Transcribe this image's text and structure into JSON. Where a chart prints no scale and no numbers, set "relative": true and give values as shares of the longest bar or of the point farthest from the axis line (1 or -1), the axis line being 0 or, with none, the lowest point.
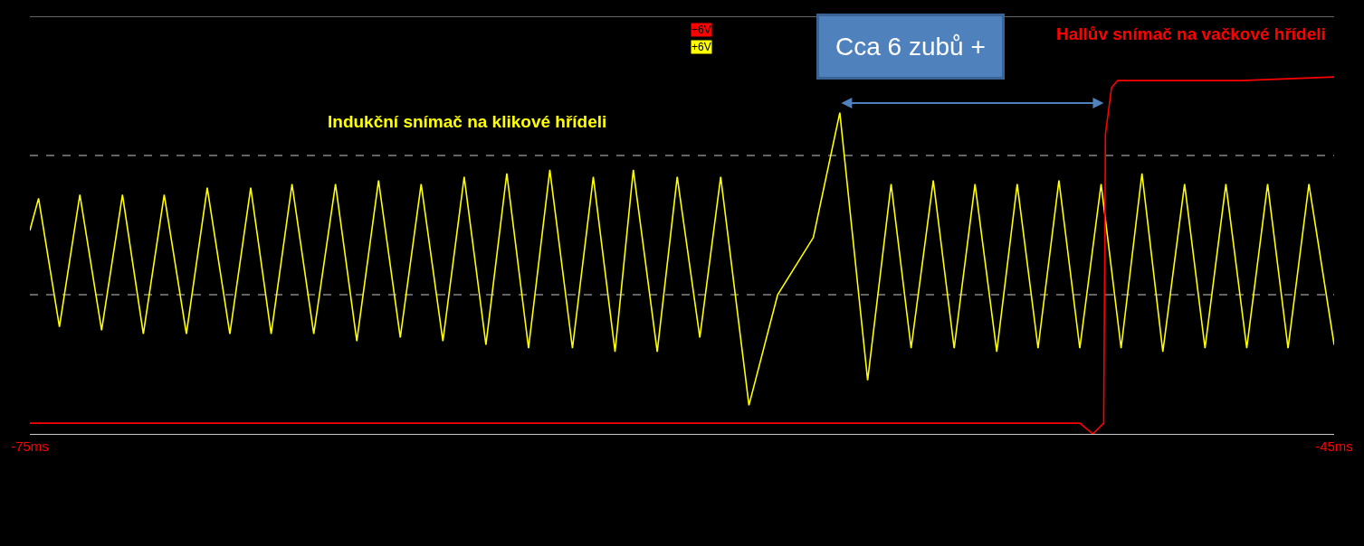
{
  "chart_data": {
    "type": "line",
    "relative": true,
    "legend": false,
    "ref_lines": [
      {
        "axis": "y",
        "value": 1.17,
        "line_style": "solid",
        "color": "#c8c8c8"
      },
      {
        "axis": "y",
        "value": 0.78,
        "line_style": "dashed",
        "color": "#c8c8c8"
      },
      {
        "axis": "y",
        "value": 0.39,
        "line_style": "dashed",
        "color": "#c8c8c8"
      }
    ],
    "marker": "none",
    "line_style": "solid",
    "xlim": [
      -75,
      -45
    ],
    "xticks": [
      {
        "value": -75,
        "label": "-75ms"
      },
      {
        "value": -45,
        "label": "-45ms"
      }
    ],
    "annotations": [
      "+6V",
      "+6V",
      "Cca 6 zubů +"
    ],
    "series": [
      {
        "name": "Indukční snímač na klikové hřídeli",
        "color": "#ffff00",
        "x": [
          -75.0,
          -74.8,
          -74.32,
          -73.85,
          -73.35,
          -72.87,
          -72.39,
          -71.91,
          -71.4,
          -70.92,
          -70.4,
          -69.92,
          -69.45,
          -68.97,
          -68.47,
          -67.97,
          -67.48,
          -66.98,
          -66.48,
          -66.0,
          -65.5,
          -65.01,
          -64.51,
          -64.03,
          -63.53,
          -63.04,
          -62.52,
          -62.04,
          -61.54,
          -61.12,
          -60.57,
          -60.11,
          -59.59,
          -59.11,
          -58.46,
          -57.8,
          -56.98,
          -56.37,
          -55.73,
          -55.19,
          -54.73,
          -54.22,
          -53.74,
          -53.26,
          -52.76,
          -52.29,
          -51.81,
          -51.33,
          -50.85,
          -50.36,
          -49.9,
          -49.42,
          -48.94,
          -48.44,
          -47.97,
          -47.49,
          -47.01,
          -46.53,
          -46.06,
          -45.58,
          -45.0
        ],
        "values": [
          0.57,
          0.66,
          0.3,
          0.67,
          0.29,
          0.67,
          0.28,
          0.67,
          0.28,
          0.69,
          0.28,
          0.69,
          0.28,
          0.7,
          0.28,
          0.7,
          0.26,
          0.71,
          0.27,
          0.7,
          0.26,
          0.72,
          0.25,
          0.73,
          0.24,
          0.74,
          0.24,
          0.72,
          0.23,
          0.74,
          0.23,
          0.72,
          0.27,
          0.72,
          0.08,
          0.39,
          0.55,
          0.9,
          0.15,
          0.7,
          0.24,
          0.71,
          0.24,
          0.7,
          0.23,
          0.7,
          0.24,
          0.71,
          0.24,
          0.7,
          0.24,
          0.73,
          0.23,
          0.7,
          0.24,
          0.7,
          0.24,
          0.7,
          0.24,
          0.7,
          0.25
        ]
      },
      {
        "name": "Hallův snímač na vačkové hřídeli",
        "color": "#ff0000",
        "x": [
          -75.0,
          -71.02,
          -67.04,
          -63.06,
          -59.07,
          -55.09,
          -50.85,
          -50.55,
          -50.3,
          -50.26,
          -50.12,
          -49.98,
          -47.13,
          -45.0
        ],
        "values": [
          0.03,
          0.03,
          0.03,
          0.03,
          0.03,
          0.03,
          0.03,
          0.0,
          0.03,
          0.84,
          0.97,
          0.99,
          0.99,
          1.0
        ]
      }
    ]
  }
}
